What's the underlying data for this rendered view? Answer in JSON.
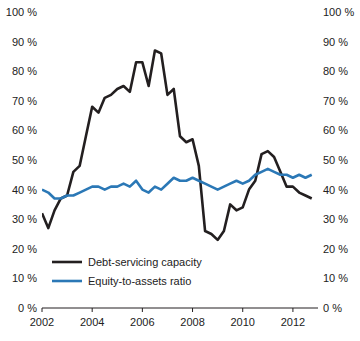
{
  "chart_data": {
    "type": "line",
    "x": [
      2002,
      2002.25,
      2002.5,
      2002.75,
      2003,
      2003.25,
      2003.5,
      2003.75,
      2004,
      2004.25,
      2004.5,
      2004.75,
      2005,
      2005.25,
      2005.5,
      2005.75,
      2006,
      2006.25,
      2006.5,
      2006.75,
      2007,
      2007.25,
      2007.5,
      2007.75,
      2008,
      2008.25,
      2008.5,
      2008.75,
      2009,
      2009.25,
      2009.5,
      2009.75,
      2010,
      2010.25,
      2010.5,
      2010.75,
      2011,
      2011.25,
      2011.5,
      2011.75,
      2012,
      2012.25,
      2012.5,
      2012.75
    ],
    "series": [
      {
        "name": "Debt-servicing capacity",
        "color": "#231f20",
        "values": [
          32,
          27,
          33,
          37,
          38,
          46,
          48,
          58,
          68,
          66,
          71,
          72,
          74,
          75,
          73,
          83,
          83,
          75,
          87,
          86,
          72,
          74,
          58,
          56,
          57,
          48,
          26,
          25,
          23,
          26,
          35,
          33,
          34,
          40,
          43,
          52,
          53,
          51,
          46,
          41,
          41,
          39,
          38,
          37
        ]
      },
      {
        "name": "Equity-to-assets ratio",
        "color": "#2b78b6",
        "values": [
          40,
          39,
          37,
          37,
          38,
          38,
          39,
          40,
          41,
          41,
          40,
          41,
          41,
          42,
          41,
          43,
          40,
          39,
          41,
          40,
          42,
          44,
          43,
          43,
          44,
          43,
          42,
          41,
          40,
          41,
          42,
          43,
          42,
          43,
          45,
          46,
          47,
          46,
          45,
          45,
          44,
          45,
          44,
          45
        ]
      }
    ],
    "xlim": [
      2002,
      2013
    ],
    "xticks": [
      2002,
      2004,
      2006,
      2008,
      2010,
      2012
    ],
    "ylim": [
      0,
      100
    ],
    "yticks": [
      {
        "value": 0,
        "label": "0 %"
      },
      {
        "value": 10,
        "label": "10 %"
      },
      {
        "value": 20,
        "label": "20 %"
      },
      {
        "value": 30,
        "label": "30 %"
      },
      {
        "value": 40,
        "label": "40 %"
      },
      {
        "value": 50,
        "label": "50 %"
      },
      {
        "value": 60,
        "label": "60 %"
      },
      {
        "value": 70,
        "label": "70 %"
      },
      {
        "value": 80,
        "label": "80 %"
      },
      {
        "value": 90,
        "label": "90 %"
      },
      {
        "value": 100,
        "label": "100 %"
      }
    ],
    "y2lim": [
      0,
      100
    ],
    "y2ticks": [
      {
        "value": 0,
        "label": "0 %"
      },
      {
        "value": 10,
        "label": "10 %"
      },
      {
        "value": 20,
        "label": "20 %"
      },
      {
        "value": 30,
        "label": "30 %"
      },
      {
        "value": 40,
        "label": "40 %"
      },
      {
        "value": 50,
        "label": "50 %"
      },
      {
        "value": 60,
        "label": "60 %"
      },
      {
        "value": 70,
        "label": "70 %"
      },
      {
        "value": 80,
        "label": "80 %"
      },
      {
        "value": 90,
        "label": "90 %"
      },
      {
        "value": 100,
        "label": "100 %"
      }
    ],
    "grid": false,
    "legend": "lower left"
  }
}
